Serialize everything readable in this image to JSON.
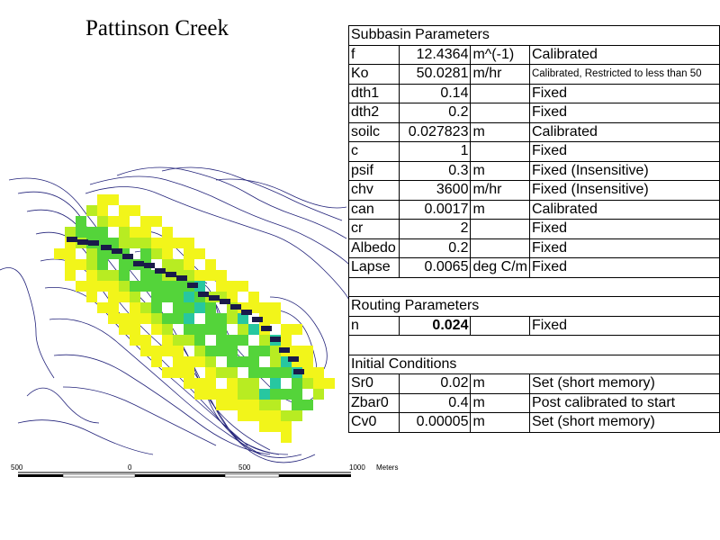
{
  "title": "Pattinson Creek",
  "scale_bar": {
    "labels": [
      "500",
      "0",
      "500",
      "1000",
      "Meters"
    ]
  },
  "sections": [
    {
      "heading": "Subbasin Parameters",
      "rows": [
        {
          "name": "f",
          "value": "12.4364",
          "unit": "m^(-1)",
          "note": "Calibrated"
        },
        {
          "name": "Ko",
          "value": "50.0281",
          "unit": "m/hr",
          "note": "Calibrated, Restricted to less than 50"
        },
        {
          "name": "dth1",
          "value": "0.14",
          "unit": "",
          "note": "Fixed"
        },
        {
          "name": "dth2",
          "value": "0.2",
          "unit": "",
          "note": "Fixed"
        },
        {
          "name": "soilc",
          "value": "0.027823",
          "unit": "m",
          "note": "Calibrated"
        },
        {
          "name": "c",
          "value": "1",
          "unit": "",
          "note": "Fixed"
        },
        {
          "name": "psif",
          "value": "0.3",
          "unit": "m",
          "note": "Fixed (Insensitive)"
        },
        {
          "name": "chv",
          "value": "3600",
          "unit": "m/hr",
          "note": "Fixed (Insensitive)"
        },
        {
          "name": "can",
          "value": "0.0017",
          "unit": "m",
          "note": "Calibrated"
        },
        {
          "name": "cr",
          "value": "2",
          "unit": "",
          "note": "Fixed"
        },
        {
          "name": "Albedo",
          "value": "0.2",
          "unit": "",
          "note": "Fixed"
        },
        {
          "name": "Lapse",
          "value": "0.0065",
          "unit": "deg C/m",
          "note": "Fixed"
        }
      ]
    },
    {
      "heading": "Routing Parameters",
      "rows": [
        {
          "name": "n",
          "value": "0.024",
          "unit": "",
          "note": "Fixed",
          "bold": true
        }
      ]
    },
    {
      "heading": "Initial Conditions",
      "rows": [
        {
          "name": "Sr0",
          "value": "0.02",
          "unit": "m",
          "note": "Set (short memory)"
        },
        {
          "name": "Zbar0",
          "value": "0.4",
          "unit": "m",
          "note": "Post calibrated to start"
        },
        {
          "name": "Cv0",
          "value": "0.00005",
          "unit": "m",
          "note": "Set (short memory)"
        }
      ]
    }
  ],
  "colors": {
    "contour": "#22227a",
    "yellow": "#f2f51a",
    "light_green": "#b8ec22",
    "green": "#54d43a",
    "teal": "#27c7a0",
    "stream": "#1a1a4a"
  }
}
